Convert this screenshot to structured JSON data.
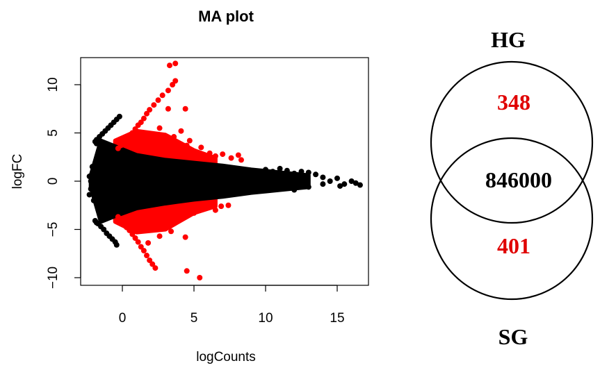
{
  "chart_data": [
    {
      "type": "scatter",
      "title": "MA plot",
      "xlabel": "logCounts",
      "ylabel": "logFC",
      "xlim": [
        -3,
        17
      ],
      "ylim": [
        -11,
        13
      ],
      "xticks": [
        0,
        5,
        10,
        15
      ],
      "yticks": [
        -10,
        -5,
        0,
        5,
        10
      ],
      "grid": false,
      "legend": "none",
      "colors": {
        "significant": "#ff0000",
        "not_significant": "#000000"
      },
      "series": [
        {
          "color": "#ff0000",
          "points": [
            [
              -0.3,
              3.4
            ],
            [
              -0.1,
              3.7
            ],
            [
              0.1,
              4.0
            ],
            [
              0.3,
              4.4
            ],
            [
              0.5,
              4.7
            ],
            [
              0.7,
              5.0
            ],
            [
              0.9,
              5.4
            ],
            [
              1.1,
              5.8
            ],
            [
              1.3,
              6.1
            ],
            [
              1.5,
              6.5
            ],
            [
              1.7,
              7.0
            ],
            [
              1.9,
              7.4
            ],
            [
              2.2,
              7.9
            ],
            [
              2.5,
              8.4
            ],
            [
              2.8,
              8.9
            ],
            [
              3.2,
              9.4
            ],
            [
              3.5,
              10.0
            ],
            [
              3.7,
              10.4
            ],
            [
              -0.3,
              -3.7
            ],
            [
              -0.1,
              -4.0
            ],
            [
              0.1,
              -4.4
            ],
            [
              0.3,
              -4.8
            ],
            [
              0.5,
              -5.1
            ],
            [
              0.7,
              -5.5
            ],
            [
              0.9,
              -5.9
            ],
            [
              1.1,
              -6.3
            ],
            [
              1.3,
              -6.8
            ],
            [
              1.5,
              -7.2
            ],
            [
              1.7,
              -7.7
            ],
            [
              1.9,
              -8.2
            ],
            [
              2.1,
              -8.6
            ],
            [
              2.3,
              -9.0
            ],
            [
              3.3,
              12.0
            ],
            [
              3.7,
              12.2
            ],
            [
              3.2,
              7.5
            ],
            [
              4.4,
              7.5
            ],
            [
              4.7,
              4.2
            ],
            [
              3.6,
              4.6
            ],
            [
              4.1,
              5.2
            ],
            [
              2.6,
              5.5
            ],
            [
              5.0,
              3.1
            ],
            [
              6.1,
              2.9
            ],
            [
              6.5,
              2.6
            ],
            [
              7.0,
              2.8
            ],
            [
              7.6,
              2.4
            ],
            [
              8.3,
              2.2
            ],
            [
              8.1,
              2.7
            ],
            [
              5.5,
              3.5
            ],
            [
              5.8,
              2.4
            ],
            [
              4.5,
              3.7
            ],
            [
              3.2,
              4.3
            ],
            [
              1.7,
              -3.6
            ],
            [
              2.1,
              -4.3
            ],
            [
              2.6,
              -4.6
            ],
            [
              3.2,
              -4.6
            ],
            [
              3.4,
              -5.2
            ],
            [
              4.4,
              -5.8
            ],
            [
              4.5,
              -9.3
            ],
            [
              5.4,
              -10.0
            ],
            [
              5.0,
              -3.3
            ],
            [
              5.6,
              -2.9
            ],
            [
              6.1,
              -2.7
            ],
            [
              6.5,
              -3.0
            ],
            [
              6.9,
              -2.6
            ],
            [
              7.4,
              -2.5
            ],
            [
              2.6,
              -5.7
            ],
            [
              1.8,
              -6.4
            ],
            [
              3.8,
              -3.6
            ],
            [
              1.3,
              -4.2
            ]
          ]
        },
        {
          "color": "#000000",
          "points": [
            [
              -1.8,
              4.3
            ],
            [
              -1.6,
              4.6
            ],
            [
              -1.4,
              4.9
            ],
            [
              -1.2,
              5.2
            ],
            [
              -1.0,
              5.5
            ],
            [
              -0.8,
              5.8
            ],
            [
              -0.6,
              6.1
            ],
            [
              -0.4,
              6.4
            ],
            [
              -0.2,
              6.7
            ],
            [
              -1.8,
              3.9
            ],
            [
              -1.9,
              4.1
            ],
            [
              -1.9,
              -4.1
            ],
            [
              -1.7,
              -4.4
            ],
            [
              -1.5,
              -4.7
            ],
            [
              -1.3,
              -5.0
            ],
            [
              -1.1,
              -5.4
            ],
            [
              -0.9,
              -5.7
            ],
            [
              -0.7,
              -6.0
            ],
            [
              -0.5,
              -6.3
            ],
            [
              -0.4,
              -6.6
            ],
            [
              -1.8,
              -4.3
            ],
            [
              -2.2,
              0.0
            ],
            [
              -2.3,
              0.5
            ],
            [
              -2.2,
              -0.8
            ],
            [
              -2.3,
              -1.4
            ],
            [
              -2.0,
              -2.0
            ],
            [
              -1.8,
              2.1
            ],
            [
              -1.6,
              2.6
            ],
            [
              -2.1,
              1.5
            ],
            [
              -1.5,
              -2.6
            ],
            [
              -1.4,
              3.0
            ],
            [
              8.5,
              0.8
            ],
            [
              9.0,
              1.1
            ],
            [
              9.5,
              0.9
            ],
            [
              10.0,
              1.2
            ],
            [
              10.5,
              1.0
            ],
            [
              11.0,
              1.3
            ],
            [
              11.5,
              1.1
            ],
            [
              12.0,
              0.8
            ],
            [
              12.5,
              1.0
            ],
            [
              13.0,
              0.9
            ],
            [
              13.5,
              0.7
            ],
            [
              14.0,
              0.4
            ],
            [
              14.5,
              0.0
            ],
            [
              15.0,
              0.3
            ],
            [
              15.5,
              -0.3
            ],
            [
              16.0,
              0.0
            ],
            [
              16.3,
              -0.2
            ],
            [
              16.6,
              -0.4
            ],
            [
              9.0,
              -0.8
            ],
            [
              9.5,
              -0.6
            ],
            [
              10.2,
              -0.5
            ],
            [
              11.0,
              -0.7
            ],
            [
              12.0,
              -0.9
            ],
            [
              13.0,
              -0.6
            ],
            [
              14.0,
              -0.3
            ],
            [
              15.2,
              -0.5
            ],
            [
              10.7,
              0.3
            ],
            [
              12.8,
              0.2
            ],
            [
              8.8,
              -0.2
            ],
            [
              11.8,
              -0.1
            ]
          ]
        }
      ],
      "density_band": {
        "color": "#000000",
        "x": [
          -2.2,
          -1.5,
          -0.5,
          1.0,
          3.0,
          5.0,
          7.0,
          9.0,
          11.0,
          13.0
        ],
        "upper": [
          0.6,
          4.2,
          3.6,
          2.7,
          2.2,
          1.9,
          1.6,
          1.2,
          0.9,
          0.6
        ],
        "lower": [
          -0.6,
          -4.2,
          -3.6,
          -2.8,
          -2.3,
          -1.9,
          -1.6,
          -1.2,
          -0.9,
          -0.6
        ]
      },
      "red_band": {
        "color": "#ff0000",
        "x": [
          -0.5,
          1.0,
          3.0,
          5.0,
          6.5
        ],
        "upper": [
          4.2,
          5.2,
          4.8,
          3.2,
          2.4
        ],
        "lower": [
          -4.2,
          -5.3,
          -5.0,
          -3.3,
          -2.6
        ]
      }
    }
  ],
  "venn": {
    "set_a": "HG",
    "set_b": "SG",
    "only_a": "348",
    "both": "846000",
    "only_b": "401",
    "exclusive_color": "#e00000"
  }
}
